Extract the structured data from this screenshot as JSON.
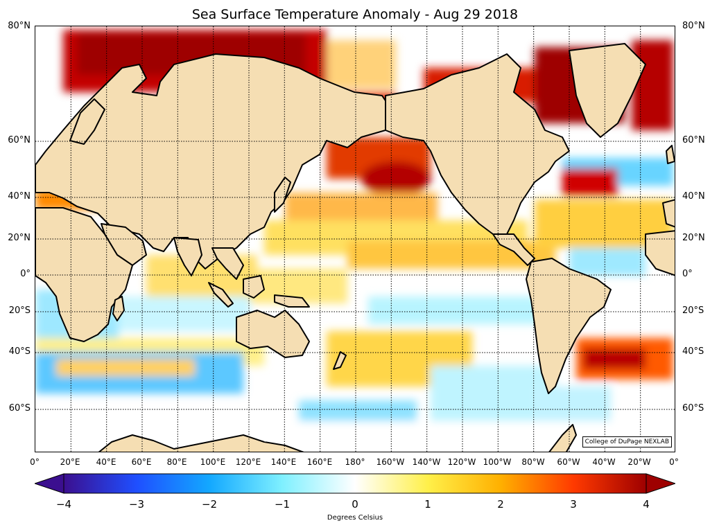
{
  "title": "Sea Surface Temperature Anomaly - Aug 29 2018",
  "lat_labels_left": [
    "80°N",
    "60°N",
    "40°N",
    "20°N",
    "0°",
    "20°S",
    "40°S",
    "60°S"
  ],
  "lat_labels_right": [
    "80°N",
    "60°N",
    "40°N",
    "20°N",
    "0°",
    "20°S",
    "40°S",
    "60°S"
  ],
  "lon_labels": [
    "0°",
    "20°E",
    "40°E",
    "60°E",
    "80°E",
    "100°E",
    "120°E",
    "140°E",
    "160°E",
    "180°",
    "160°W",
    "140°W",
    "120°W",
    "100°W",
    "80°W",
    "60°W",
    "40°W",
    "20°W",
    "0°"
  ],
  "credit": "College of DuPage NEXLAB",
  "colorbar": {
    "ticks": [
      "−4",
      "−3",
      "−2",
      "−1",
      "0",
      "1",
      "2",
      "3",
      "4"
    ],
    "label": "Degrees Celsius",
    "colors": [
      "#3b0f8f",
      "#1f4fff",
      "#13a8ff",
      "#7ff0ff",
      "#ffffff",
      "#fff04a",
      "#ffb000",
      "#ff3a00",
      "#9e0000"
    ]
  },
  "land_color": "#f5deb3"
}
